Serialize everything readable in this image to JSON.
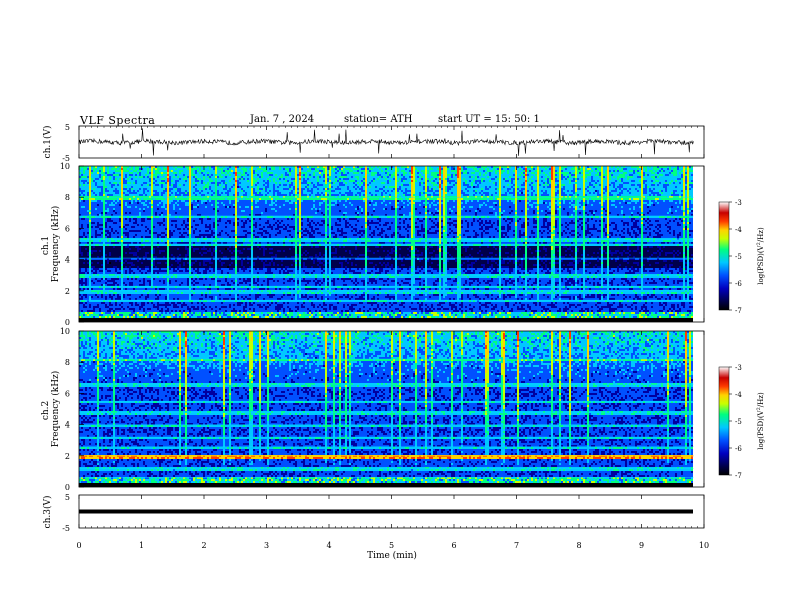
{
  "header": {
    "title": "VLF  Spectra",
    "date": "Jan.  7  , 2024",
    "station": "station= ATH",
    "start_ut": "start  UT  =   15: 50: 1"
  },
  "colors": {
    "waveform": "#000000",
    "colormap": [
      "#000000",
      "#00004a",
      "#0000c0",
      "#0050ff",
      "#00c8ff",
      "#00ff80",
      "#c8ff00",
      "#ffd200",
      "#ff3c00",
      "#c80000",
      "#ffffff"
    ]
  },
  "chart_data": [
    {
      "type": "line",
      "panel": "ch1-waveform",
      "ylabel": "ch.1(V)",
      "ylim": [
        -5,
        5
      ],
      "yticks": [
        "5",
        "-5"
      ],
      "xlim": [
        0,
        10
      ],
      "series": [
        {
          "values_summary": "noisy signal centered near 0 V, amplitude about ±1 V with sporadic spikes"
        }
      ]
    },
    {
      "type": "heatmap",
      "panel": "ch1-spectrogram",
      "ylabel": "ch.1\nFrequency (kHz)",
      "ylim": [
        0,
        10
      ],
      "yticks": [
        "0",
        "2",
        "4",
        "6",
        "8",
        "10"
      ],
      "xlim": [
        0,
        9.8
      ],
      "colorbar": {
        "label": "log(PSD)(V²/Hz)",
        "range": [
          -7,
          -3
        ],
        "ticks": [
          "-3",
          "-4",
          "-5",
          "-6",
          "-7"
        ]
      },
      "bands_khz": [
        1.4,
        2.0,
        2.3,
        3.0,
        4.1,
        5.0,
        5.3,
        6.8,
        8.0
      ],
      "dark_zone_khz": [
        3.5,
        5.0
      ]
    },
    {
      "type": "heatmap",
      "panel": "ch2-spectrogram",
      "ylabel": "ch.2\nFrequency (kHz)",
      "ylim": [
        0,
        10
      ],
      "yticks": [
        "0",
        "2",
        "4",
        "6",
        "8",
        "10"
      ],
      "xlim": [
        0,
        9.8
      ],
      "colorbar": {
        "label": "log(PSD)(V²/Hz)",
        "range": [
          -7,
          -3
        ],
        "ticks": [
          "-3",
          "-4",
          "-5",
          "-6",
          "-7"
        ]
      },
      "bands_khz": [
        0.6,
        1.2,
        2.0,
        2.6,
        3.2,
        4.0,
        4.8,
        5.5,
        6.6,
        8.2
      ],
      "strong_band_khz": 2.0
    },
    {
      "type": "line",
      "panel": "ch3-waveform",
      "ylabel": "ch.3(V)",
      "ylim": [
        -5,
        5
      ],
      "yticks": [
        "5",
        "-5"
      ],
      "xlim": [
        0,
        10
      ],
      "series": [
        {
          "values_summary": "flat trace near -1.8 V"
        }
      ]
    }
  ],
  "xaxis": {
    "label": "Time  (min)",
    "ticks": [
      "0",
      "1",
      "2",
      "3",
      "4",
      "5",
      "6",
      "7",
      "8",
      "9",
      "10"
    ]
  }
}
